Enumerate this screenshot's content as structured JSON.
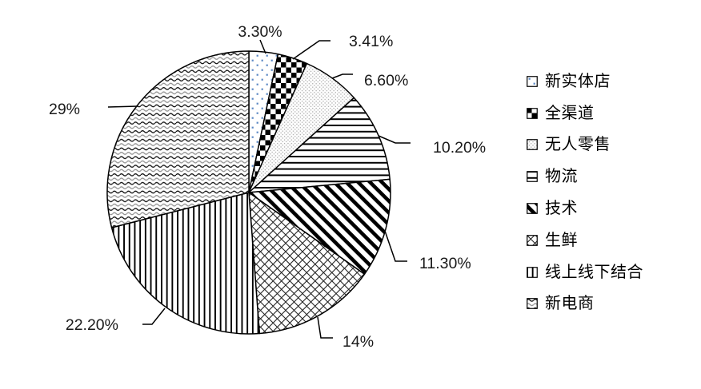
{
  "chart_data": {
    "type": "pie",
    "title": "",
    "direction": "clockwise",
    "start_angle_deg": 0,
    "legend_position": "right",
    "grid": false,
    "slices": [
      {
        "label": "新实体店",
        "value": 3.3,
        "display": "3.30%",
        "pattern": "sparse-blue-dots"
      },
      {
        "label": "全渠道",
        "value": 3.41,
        "display": "3.41%",
        "pattern": "checkerboard"
      },
      {
        "label": "无人零售",
        "value": 6.6,
        "display": "6.60%",
        "pattern": "dense-gray-dots"
      },
      {
        "label": "物流",
        "value": 10.2,
        "display": "10.20%",
        "pattern": "horizontal-lines"
      },
      {
        "label": "技术",
        "value": 11.3,
        "display": "11.30%",
        "pattern": "wide-downward-diagonal"
      },
      {
        "label": "生鲜",
        "value": 14,
        "display": "14%",
        "pattern": "diamond-lattice"
      },
      {
        "label": "线上线下结合",
        "value": 22.2,
        "display": "22.20%",
        "pattern": "vertical-lines"
      },
      {
        "label": "新电商",
        "value": 29,
        "display": "29%",
        "pattern": "waves"
      }
    ],
    "colors": {
      "background": "#ffffff",
      "outline": "#000000",
      "label_text": "#1a1a1a",
      "sparse_dot_blue": "#5b88c4",
      "dense_dot_gray": "#a8a8a8",
      "lattice_line": "#262626",
      "wave_black": "#0a0a0a",
      "wave_gray": "#909090"
    }
  }
}
